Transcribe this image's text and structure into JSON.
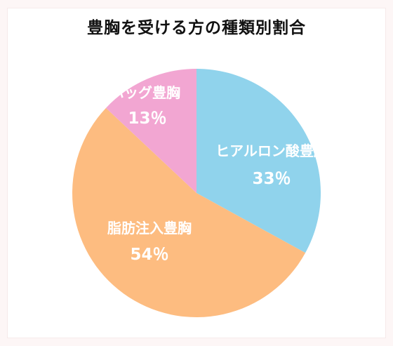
{
  "title": "豊胸を受ける方の種類別割合",
  "chart_data": {
    "type": "pie",
    "title": "豊胸を受ける方の種類別割合",
    "slices": [
      {
        "label": "ヒアルロン酸豊胸",
        "value": 33,
        "value_label": "33％",
        "color": "#90d3ec"
      },
      {
        "label": "脂肪注入豊胸",
        "value": 54,
        "value_label": "54％",
        "color": "#fdbc80"
      },
      {
        "label": "バッグ豊胸",
        "value": 13,
        "value_label": "13％",
        "color": "#f2a6d2"
      }
    ],
    "start": "12 o'clock",
    "direction": "clockwise"
  }
}
